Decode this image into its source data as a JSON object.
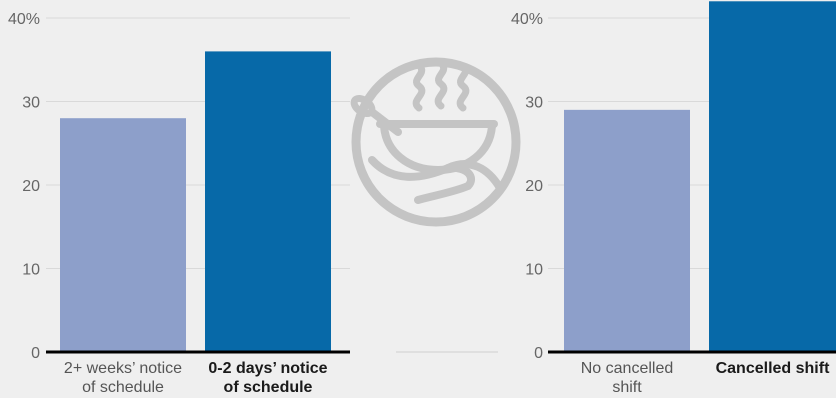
{
  "colors": {
    "background": "#efefef",
    "bar_light": "#8d9fca",
    "bar_dark": "#0769a8",
    "grid": "#d9d9d9",
    "axis": "#000000",
    "tick_text": "#666666",
    "category_text": "#555555",
    "category_bold": "#1a1a1a",
    "icon": "#c4c4c4"
  },
  "icon": {
    "name": "soup-bowl-icon"
  },
  "chart_data": [
    {
      "type": "bar",
      "categories": [
        "2+ weeks' notice of schedule",
        "0-2 days' notice of schedule"
      ],
      "category_lines": [
        [
          "2+ weeks’ notice",
          "of schedule"
        ],
        [
          "0-2 days’ notice",
          "of schedule"
        ]
      ],
      "bold_category": [
        false,
        true
      ],
      "values": [
        28,
        36
      ],
      "yticks": [
        "0",
        "10",
        "20",
        "30",
        "40%"
      ],
      "ylim": [
        0,
        40
      ],
      "grid": true,
      "title": "",
      "xlabel": "",
      "ylabel": ""
    },
    {
      "type": "bar",
      "categories": [
        "No cancelled shift",
        "Cancelled shift"
      ],
      "category_lines": [
        [
          "No cancelled",
          "shift"
        ],
        [
          "Cancelled shift"
        ]
      ],
      "bold_category": [
        false,
        true
      ],
      "values": [
        29,
        42
      ],
      "yticks": [
        "0",
        "10",
        "20",
        "30",
        "40%"
      ],
      "ylim": [
        0,
        40
      ],
      "grid": true,
      "title": "",
      "xlabel": "",
      "ylabel": ""
    }
  ]
}
